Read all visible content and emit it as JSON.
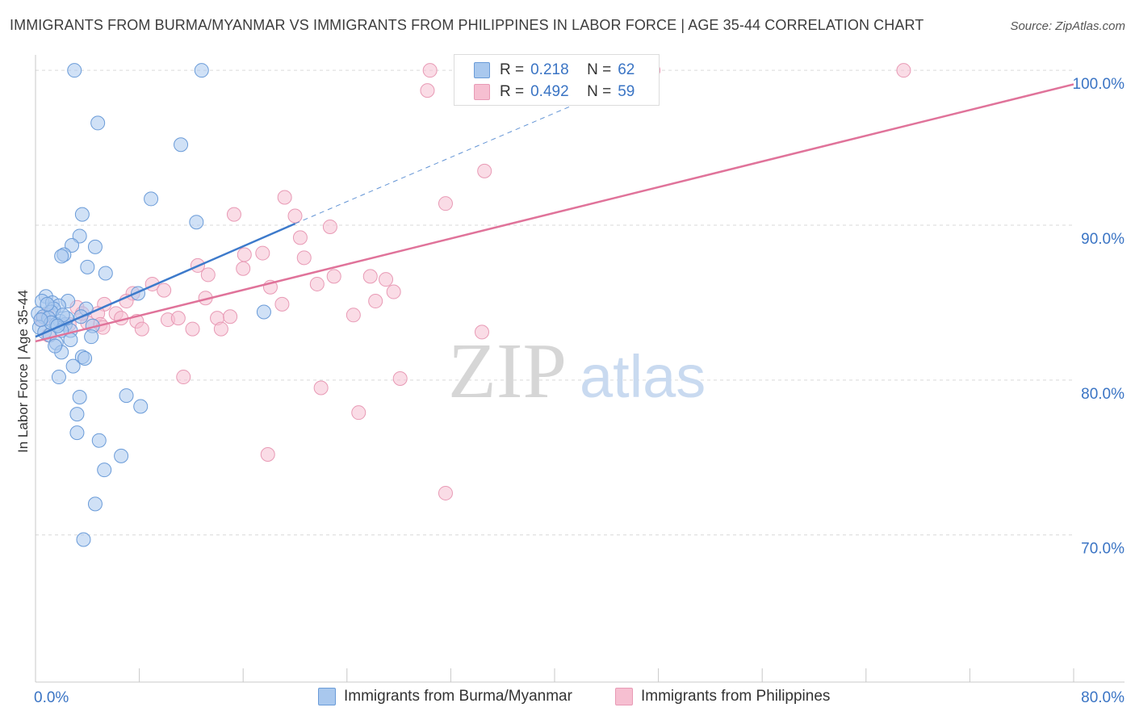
{
  "title": "IMMIGRANTS FROM BURMA/MYANMAR VS IMMIGRANTS FROM PHILIPPINES IN LABOR FORCE | AGE 35-44 CORRELATION CHART",
  "source": "Source: ZipAtlas.com",
  "watermark": {
    "zip": "ZIP",
    "atlas": "atlas"
  },
  "legend": {
    "r_label": "R =",
    "n_label": "N =",
    "series": [
      {
        "name": "Immigrants from Burma/Myanmar",
        "r": "0.218",
        "n": "62"
      },
      {
        "name": "Immigrants from Philippines",
        "r": "0.492",
        "n": "59"
      }
    ]
  },
  "colors": {
    "blue_fill": "#a9c8ee",
    "blue_stroke": "#6a9bd8",
    "blue_line": "#3d7acb",
    "pink_fill": "#f6bfd1",
    "pink_stroke": "#e89ab5",
    "pink_line": "#e0739a",
    "value_text": "#3a74c4",
    "grid": "#d9d9d9"
  },
  "chart_data": {
    "type": "scatter",
    "title": "IMMIGRANTS FROM BURMA/MYANMAR VS IMMIGRANTS FROM PHILIPPINES IN LABOR FORCE | AGE 35-44 CORRELATION CHART",
    "xlabel": "",
    "ylabel": "In Labor Force | Age 35-44",
    "xlim": [
      0,
      80
    ],
    "ylim": [
      60.5,
      101
    ],
    "x_tick_labels": [
      {
        "value": 0,
        "label": "0.0%"
      },
      {
        "value": 80,
        "label": "80.0%"
      }
    ],
    "x_minor_ticks": [
      8,
      16,
      24,
      32,
      40,
      48,
      56,
      64,
      72
    ],
    "y_ticks": [
      {
        "value": 70,
        "label": "70.0%"
      },
      {
        "value": 80,
        "label": "80.0%"
      },
      {
        "value": 90,
        "label": "90.0%"
      },
      {
        "value": 100,
        "label": "100.0%"
      }
    ],
    "grid": true,
    "legend_position": "top-center",
    "series": [
      {
        "name": "Immigrants from Burma/Myanmar",
        "color": "blue",
        "trend": {
          "x": [
            0,
            20
          ],
          "y": [
            82.8,
            90.1
          ],
          "dashed_to": {
            "x": 48,
            "y": 100.1
          }
        },
        "points": [
          [
            3.0,
            100.0
          ],
          [
            12.8,
            100.0
          ],
          [
            4.8,
            96.6
          ],
          [
            11.2,
            95.2
          ],
          [
            8.9,
            91.7
          ],
          [
            12.4,
            90.2
          ],
          [
            3.6,
            90.7
          ],
          [
            3.4,
            89.3
          ],
          [
            2.8,
            88.7
          ],
          [
            4.6,
            88.6
          ],
          [
            2.2,
            88.1
          ],
          [
            2.0,
            88.0
          ],
          [
            4.0,
            87.3
          ],
          [
            5.4,
            86.9
          ],
          [
            7.9,
            85.6
          ],
          [
            0.8,
            85.4
          ],
          [
            0.5,
            85.1
          ],
          [
            1.3,
            85.0
          ],
          [
            2.5,
            85.1
          ],
          [
            1.8,
            84.8
          ],
          [
            1.4,
            84.6
          ],
          [
            3.9,
            84.6
          ],
          [
            1.2,
            84.4
          ],
          [
            0.2,
            84.3
          ],
          [
            0.6,
            84.1
          ],
          [
            1.0,
            84.0
          ],
          [
            17.6,
            84.4
          ],
          [
            1.9,
            83.8
          ],
          [
            1.6,
            83.6
          ],
          [
            2.3,
            83.6
          ],
          [
            0.3,
            83.4
          ],
          [
            2.7,
            83.2
          ],
          [
            0.7,
            83.1
          ],
          [
            1.1,
            82.9
          ],
          [
            4.4,
            83.5
          ],
          [
            2.0,
            83.2
          ],
          [
            4.3,
            82.8
          ],
          [
            2.7,
            82.6
          ],
          [
            1.6,
            82.4
          ],
          [
            2.0,
            81.8
          ],
          [
            3.6,
            81.5
          ],
          [
            3.8,
            81.4
          ],
          [
            2.9,
            80.9
          ],
          [
            1.8,
            80.2
          ],
          [
            7.0,
            79.0
          ],
          [
            8.1,
            78.3
          ],
          [
            3.4,
            78.9
          ],
          [
            3.2,
            77.8
          ],
          [
            3.2,
            76.6
          ],
          [
            4.9,
            76.1
          ],
          [
            6.6,
            75.1
          ],
          [
            5.3,
            74.2
          ],
          [
            4.6,
            72.0
          ],
          [
            3.7,
            69.7
          ],
          [
            1.2,
            83.7
          ],
          [
            0.9,
            84.9
          ],
          [
            2.4,
            84.0
          ],
          [
            3.5,
            84.1
          ],
          [
            1.5,
            82.2
          ],
          [
            0.4,
            83.9
          ],
          [
            2.1,
            84.2
          ],
          [
            1.7,
            83.5
          ]
        ]
      },
      {
        "name": "Immigrants from Philippines",
        "color": "pink",
        "trend": {
          "x": [
            0,
            80
          ],
          "y": [
            82.5,
            99.1
          ]
        },
        "points": [
          [
            30.4,
            100.0
          ],
          [
            47.6,
            100.0
          ],
          [
            66.9,
            100.0
          ],
          [
            30.2,
            98.7
          ],
          [
            34.6,
            93.5
          ],
          [
            31.6,
            91.4
          ],
          [
            19.2,
            91.8
          ],
          [
            20.0,
            90.6
          ],
          [
            15.3,
            90.7
          ],
          [
            22.7,
            89.9
          ],
          [
            20.4,
            89.2
          ],
          [
            16.1,
            88.1
          ],
          [
            20.7,
            87.9
          ],
          [
            17.5,
            88.2
          ],
          [
            12.5,
            87.4
          ],
          [
            16.0,
            87.2
          ],
          [
            13.3,
            86.8
          ],
          [
            23.0,
            86.7
          ],
          [
            25.8,
            86.7
          ],
          [
            27.0,
            86.5
          ],
          [
            21.7,
            86.2
          ],
          [
            18.1,
            86.0
          ],
          [
            9.0,
            86.2
          ],
          [
            9.9,
            85.8
          ],
          [
            7.5,
            85.6
          ],
          [
            27.6,
            85.7
          ],
          [
            13.1,
            85.3
          ],
          [
            7.0,
            85.1
          ],
          [
            26.2,
            85.1
          ],
          [
            19.0,
            84.9
          ],
          [
            5.3,
            84.9
          ],
          [
            6.2,
            84.3
          ],
          [
            4.8,
            84.3
          ],
          [
            3.2,
            84.7
          ],
          [
            0.9,
            84.2
          ],
          [
            14.0,
            84.0
          ],
          [
            15.0,
            84.1
          ],
          [
            10.2,
            83.9
          ],
          [
            11.0,
            84.0
          ],
          [
            24.5,
            84.2
          ],
          [
            7.8,
            83.8
          ],
          [
            4.0,
            83.7
          ],
          [
            5.0,
            83.6
          ],
          [
            8.2,
            83.3
          ],
          [
            12.1,
            83.3
          ],
          [
            14.3,
            83.3
          ],
          [
            5.2,
            83.4
          ],
          [
            1.0,
            82.9
          ],
          [
            34.4,
            83.1
          ],
          [
            11.4,
            80.2
          ],
          [
            28.1,
            80.1
          ],
          [
            22.0,
            79.5
          ],
          [
            24.9,
            77.9
          ],
          [
            17.9,
            75.2
          ],
          [
            31.6,
            72.7
          ],
          [
            2.6,
            83.6
          ],
          [
            3.6,
            84.3
          ],
          [
            6.6,
            84.0
          ],
          [
            0.5,
            83.9
          ]
        ]
      }
    ]
  }
}
